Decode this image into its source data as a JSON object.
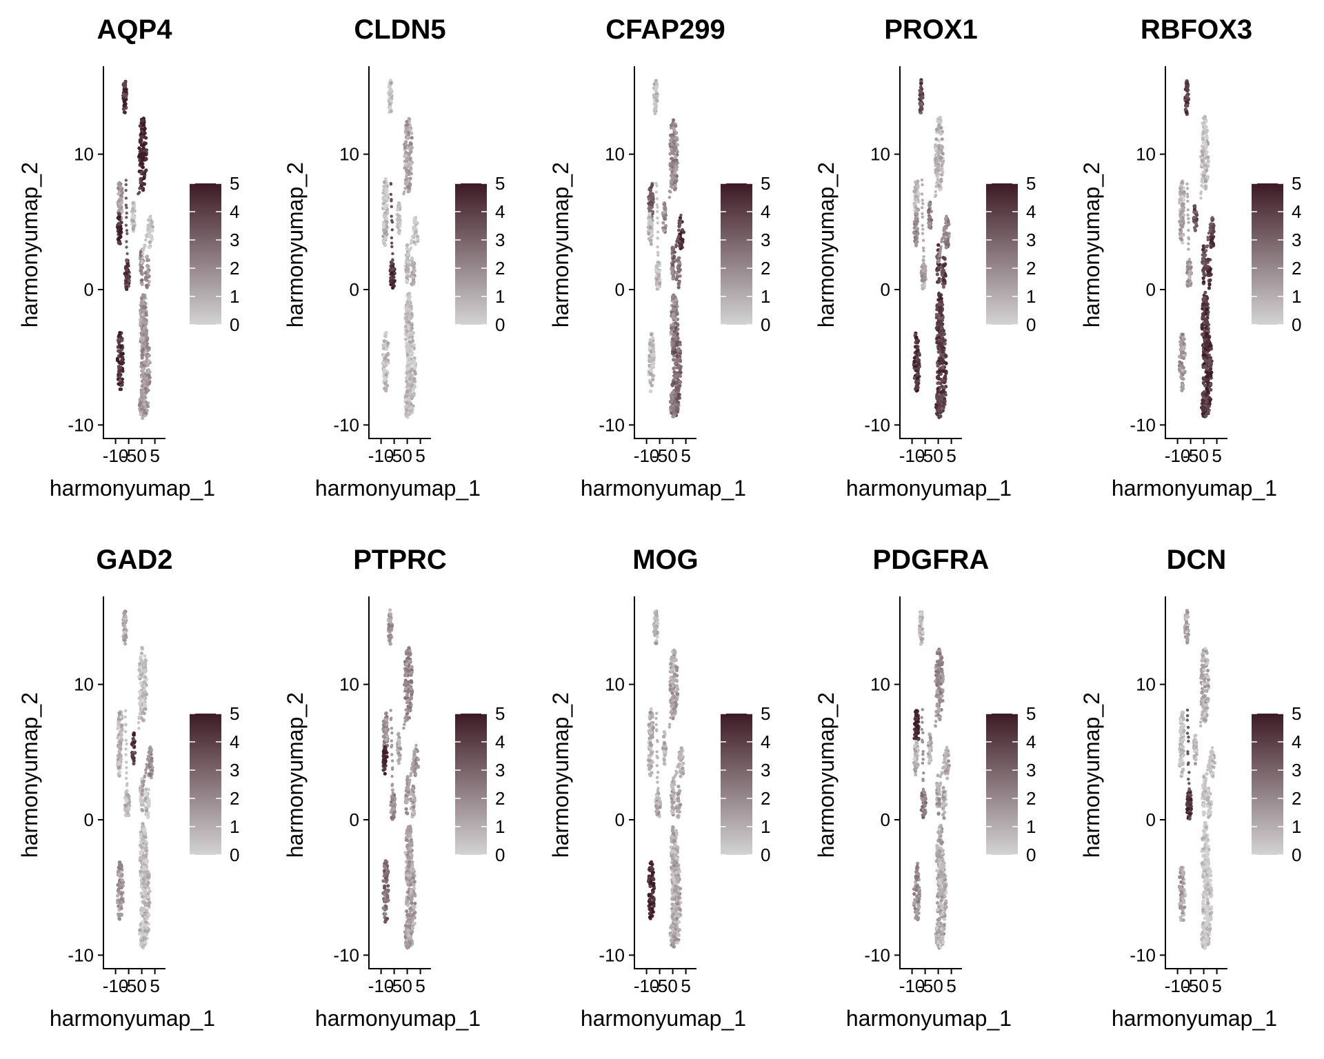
{
  "figure": {
    "low_color": "#d3d3d3",
    "high_color": "#3d1a24"
  },
  "chart_data": [
    {
      "type": "scatter",
      "title": "AQP4",
      "xlabel": "harmonyumap_1",
      "ylabel": "harmonyumap_2",
      "xlim": [
        -12,
        8
      ],
      "ylim": [
        -11,
        16.5
      ],
      "xticks": [
        "-10",
        "-5",
        "0",
        "5"
      ],
      "yticks": [
        "-10",
        "0",
        "10"
      ],
      "legend": {
        "min": 0,
        "max": 5,
        "labels": [
          "0",
          "1",
          "2",
          "3",
          "4",
          "5"
        ]
      },
      "expression": {
        "A": 0.85,
        "B": 0.3,
        "C": 0.9,
        "D": 0.1,
        "E": 0.1,
        "F": 0.8,
        "G": 0.85,
        "H": 0.95,
        "I": 0.4,
        "J": 0.35,
        "K": 0.3,
        "L": 0.3,
        "M": 0.3
      }
    },
    {
      "type": "scatter",
      "title": "CLDN5",
      "xlabel": "harmonyumap_1",
      "ylabel": "harmonyumap_2",
      "xlim": [
        -12,
        8
      ],
      "ylim": [
        -11,
        16.5
      ],
      "xticks": [
        "-10",
        "-5",
        "0",
        "5"
      ],
      "yticks": [
        "-10",
        "0",
        "10"
      ],
      "legend": {
        "min": 0,
        "max": 5,
        "labels": [
          "0",
          "1",
          "2",
          "3",
          "4",
          "5"
        ]
      },
      "expression": {
        "A": 0.1,
        "B": 0.1,
        "C": 0.15,
        "D": 0.1,
        "E": 0.05,
        "F": 0.9,
        "G": 0.1,
        "H": 0.25,
        "I": 0.15,
        "J": 0.2,
        "K": 0.1,
        "L": 0.1,
        "M": 0.1
      }
    },
    {
      "type": "scatter",
      "title": "CFAP299",
      "xlabel": "harmonyumap_1",
      "ylabel": "harmonyumap_2",
      "xlim": [
        -12,
        8
      ],
      "ylim": [
        -11,
        16.5
      ],
      "xticks": [
        "-10",
        "-5",
        "0",
        "5"
      ],
      "yticks": [
        "-10",
        "0",
        "10"
      ],
      "legend": {
        "min": 0,
        "max": 5,
        "labels": [
          "0",
          "1",
          "2",
          "3",
          "4",
          "5"
        ]
      },
      "expression": {
        "A": 0.15,
        "B": 0.65,
        "C": 0.15,
        "D": 0.35,
        "E": 0.85,
        "F": 0.1,
        "G": 0.1,
        "H": 0.4,
        "I": 0.45,
        "J": 0.5,
        "K": 0.4,
        "L": 0.6,
        "M": 0.45
      }
    },
    {
      "type": "scatter",
      "title": "PROX1",
      "xlabel": "harmonyumap_1",
      "ylabel": "harmonyumap_2",
      "xlim": [
        -12,
        8
      ],
      "ylim": [
        -11,
        16.5
      ],
      "xticks": [
        "-10",
        "-5",
        "0",
        "5"
      ],
      "yticks": [
        "-10",
        "0",
        "10"
      ],
      "legend": {
        "min": 0,
        "max": 5,
        "labels": [
          "0",
          "1",
          "2",
          "3",
          "4",
          "5"
        ]
      },
      "expression": {
        "A": 0.75,
        "B": 0.1,
        "C": 0.45,
        "D": 0.45,
        "E": 0.45,
        "F": 0.25,
        "G": 0.85,
        "H": 0.15,
        "I": 0.8,
        "J": 0.75,
        "K": 0.8,
        "L": 0.8,
        "M": 0.8
      }
    },
    {
      "type": "scatter",
      "title": "RBFOX3",
      "xlabel": "harmonyumap_1",
      "ylabel": "harmonyumap_2",
      "xlim": [
        -12,
        8
      ],
      "ylim": [
        -11,
        16.5
      ],
      "xticks": [
        "-10",
        "-5",
        "0",
        "5"
      ],
      "yticks": [
        "-10",
        "0",
        "10"
      ],
      "legend": {
        "min": 0,
        "max": 5,
        "labels": [
          "0",
          "1",
          "2",
          "3",
          "4",
          "5"
        ]
      },
      "expression": {
        "A": 0.8,
        "B": 0.15,
        "C": 0.2,
        "D": 0.75,
        "E": 0.8,
        "F": 0.25,
        "G": 0.3,
        "H": 0.1,
        "I": 0.8,
        "J": 0.85,
        "K": 0.85,
        "L": 0.85,
        "M": 0.85
      }
    },
    {
      "type": "scatter",
      "title": "GAD2",
      "xlabel": "harmonyumap_1",
      "ylabel": "harmonyumap_2",
      "xlim": [
        -12,
        8
      ],
      "ylim": [
        -11,
        16.5
      ],
      "xticks": [
        "-10",
        "-5",
        "0",
        "5"
      ],
      "yticks": [
        "-10",
        "0",
        "10"
      ],
      "legend": {
        "min": 0,
        "max": 5,
        "labels": [
          "0",
          "1",
          "2",
          "3",
          "4",
          "5"
        ]
      },
      "expression": {
        "A": 0.2,
        "B": 0.15,
        "C": 0.15,
        "D": 0.85,
        "E": 0.4,
        "F": 0.1,
        "G": 0.3,
        "H": 0.1,
        "I": 0.1,
        "J": 0.1,
        "K": 0.1,
        "L": 0.1,
        "M": 0.1
      }
    },
    {
      "type": "scatter",
      "title": "PTPRC",
      "xlabel": "harmonyumap_1",
      "ylabel": "harmonyumap_2",
      "xlim": [
        -12,
        8
      ],
      "ylim": [
        -11,
        16.5
      ],
      "xticks": [
        "-10",
        "-5",
        "0",
        "5"
      ],
      "yticks": [
        "-10",
        "0",
        "10"
      ],
      "legend": {
        "min": 0,
        "max": 5,
        "labels": [
          "0",
          "1",
          "2",
          "3",
          "4",
          "5"
        ]
      },
      "expression": {
        "A": 0.3,
        "B": 0.35,
        "C": 0.95,
        "D": 0.2,
        "E": 0.3,
        "F": 0.4,
        "G": 0.55,
        "H": 0.4,
        "I": 0.3,
        "J": 0.25,
        "K": 0.25,
        "L": 0.25,
        "M": 0.25
      }
    },
    {
      "type": "scatter",
      "title": "MOG",
      "xlabel": "harmonyumap_1",
      "ylabel": "harmonyumap_2",
      "xlim": [
        -12,
        8
      ],
      "ylim": [
        -11,
        16.5
      ],
      "xticks": [
        "-10",
        "-5",
        "0",
        "5"
      ],
      "yticks": [
        "-10",
        "0",
        "10"
      ],
      "legend": {
        "min": 0,
        "max": 5,
        "labels": [
          "0",
          "1",
          "2",
          "3",
          "4",
          "5"
        ]
      },
      "expression": {
        "A": 0.2,
        "B": 0.2,
        "C": 0.15,
        "D": 0.2,
        "E": 0.2,
        "F": 0.2,
        "G": 0.95,
        "H": 0.25,
        "I": 0.2,
        "J": 0.2,
        "K": 0.2,
        "L": 0.2,
        "M": 0.2
      }
    },
    {
      "type": "scatter",
      "title": "PDGFRA",
      "xlabel": "harmonyumap_1",
      "ylabel": "harmonyumap_2",
      "xlim": [
        -12,
        8
      ],
      "ylim": [
        -11,
        16.5
      ],
      "xticks": [
        "-10",
        "-5",
        "0",
        "5"
      ],
      "yticks": [
        "-10",
        "0",
        "10"
      ],
      "legend": {
        "min": 0,
        "max": 5,
        "labels": [
          "0",
          "1",
          "2",
          "3",
          "4",
          "5"
        ]
      },
      "expression": {
        "A": 0.15,
        "B": 0.95,
        "C": 0.15,
        "D": 0.2,
        "E": 0.2,
        "F": 0.45,
        "G": 0.35,
        "H": 0.35,
        "I": 0.25,
        "J": 0.2,
        "K": 0.2,
        "L": 0.2,
        "M": 0.2
      }
    },
    {
      "type": "scatter",
      "title": "DCN",
      "xlabel": "harmonyumap_1",
      "ylabel": "harmonyumap_2",
      "xlim": [
        -12,
        8
      ],
      "ylim": [
        -11,
        16.5
      ],
      "xticks": [
        "-10",
        "-5",
        "0",
        "5"
      ],
      "yticks": [
        "-10",
        "0",
        "10"
      ],
      "legend": {
        "min": 0,
        "max": 5,
        "labels": [
          "0",
          "1",
          "2",
          "3",
          "4",
          "5"
        ]
      },
      "expression": {
        "A": 0.2,
        "B": 0.1,
        "C": 0.1,
        "D": 0.15,
        "E": 0.1,
        "F": 0.85,
        "G": 0.25,
        "H": 0.2,
        "I": 0.05,
        "J": 0.05,
        "K": 0.05,
        "L": 0.05,
        "M": 0.05
      }
    }
  ]
}
